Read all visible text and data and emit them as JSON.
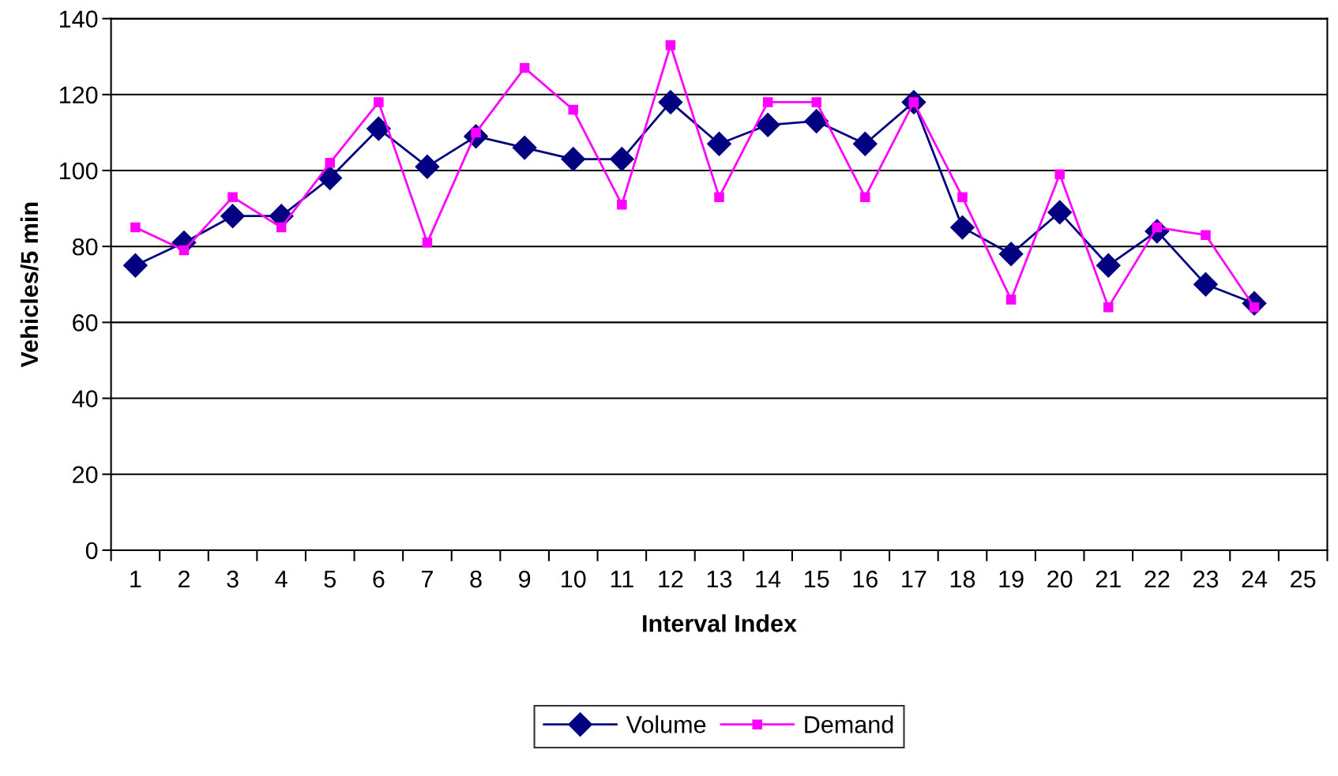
{
  "chart_data": {
    "type": "line",
    "xlabel": "Interval Index",
    "ylabel": "Vehicles/5 min",
    "categories": [
      "1",
      "2",
      "3",
      "4",
      "5",
      "6",
      "7",
      "8",
      "9",
      "10",
      "11",
      "12",
      "13",
      "14",
      "15",
      "16",
      "17",
      "18",
      "19",
      "20",
      "21",
      "22",
      "23",
      "24",
      "25"
    ],
    "series": [
      {
        "name": "Volume",
        "color": "#000080",
        "marker": "diamond",
        "values": [
          75,
          81,
          88,
          88,
          98,
          111,
          101,
          109,
          106,
          103,
          103,
          118,
          107,
          112,
          113,
          107,
          118,
          85,
          78,
          89,
          75,
          84,
          70,
          65,
          null
        ]
      },
      {
        "name": "Demand",
        "color": "#ff00ff",
        "marker": "square",
        "values": [
          85,
          79,
          93,
          85,
          102,
          118,
          81,
          110,
          127,
          116,
          91,
          133,
          93,
          118,
          118,
          93,
          118,
          93,
          66,
          99,
          64,
          85,
          83,
          64,
          null
        ]
      }
    ],
    "ylim": [
      0,
      140
    ],
    "yticks": [
      0,
      20,
      40,
      60,
      80,
      100,
      120,
      140
    ],
    "grid": "y",
    "legend": "bottom",
    "line_style": "solid"
  }
}
